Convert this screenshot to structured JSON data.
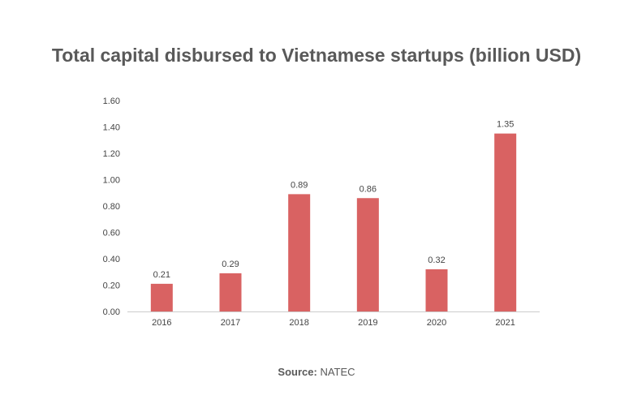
{
  "chart_data": {
    "type": "bar",
    "title": "Total capital disbursed to Vietnamese startups (billion USD)",
    "categories": [
      "2016",
      "2017",
      "2018",
      "2019",
      "2020",
      "2021"
    ],
    "values": [
      0.21,
      0.29,
      0.89,
      0.86,
      0.32,
      1.35
    ],
    "data_labels": [
      "0.21",
      "0.29",
      "0.89",
      "0.86",
      "0.32",
      "1.35"
    ],
    "ylim": [
      0,
      1.6
    ],
    "yticks": [
      "0.00",
      "0.20",
      "0.40",
      "0.60",
      "0.80",
      "1.00",
      "1.20",
      "1.40",
      "1.60"
    ],
    "xlabel": "",
    "ylabel": "",
    "grid": false,
    "bar_color": "#d96262"
  },
  "source": {
    "label": "Source:",
    "value": "NATEC"
  }
}
